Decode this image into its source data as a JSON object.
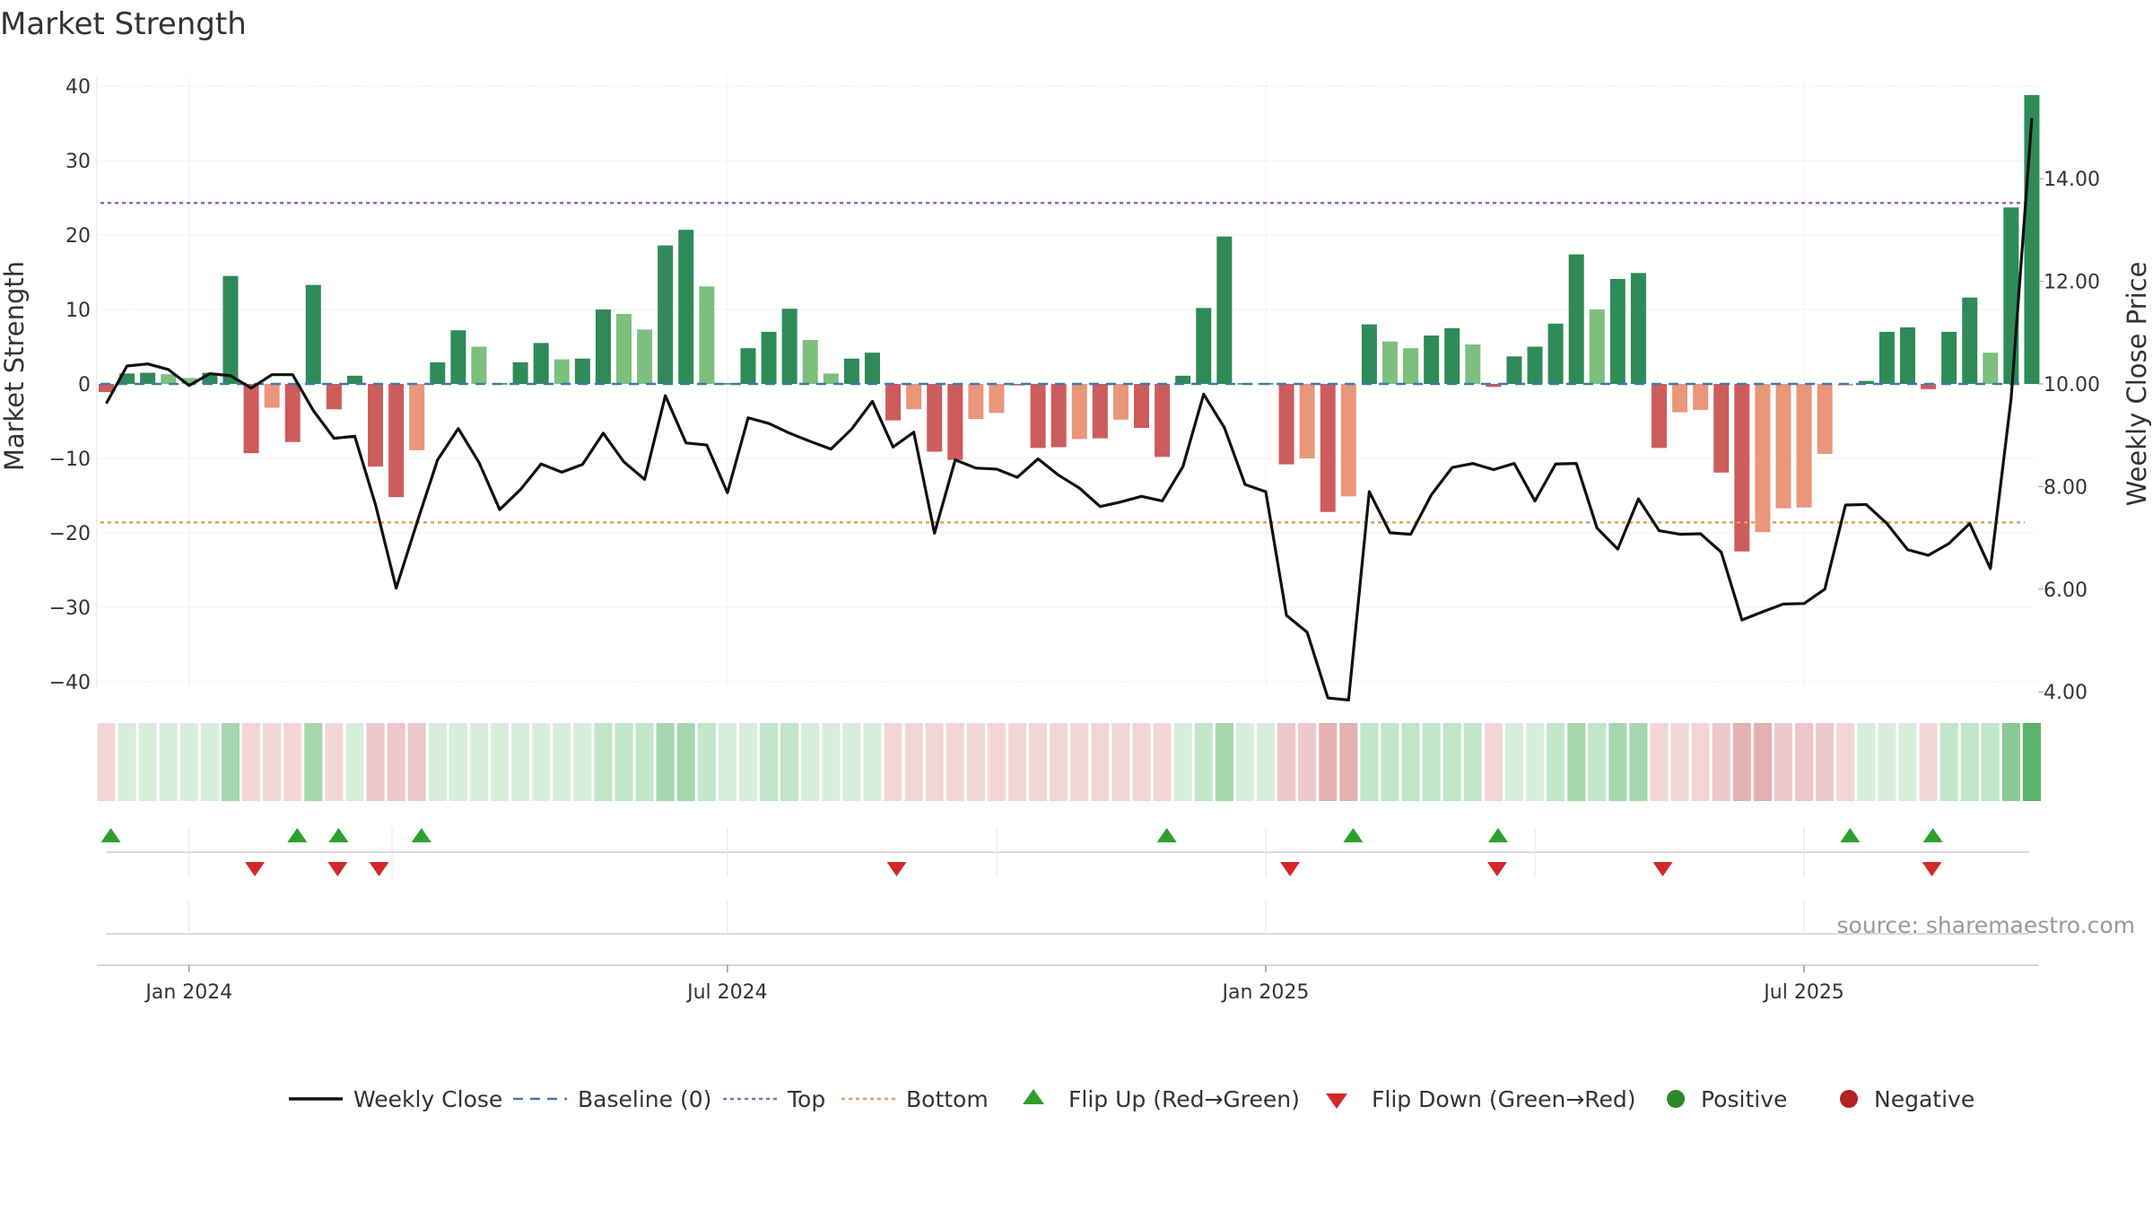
{
  "chart_data": {
    "type": "bar",
    "title": "Market Strength",
    "ylabel_left": "Market Strength",
    "ylabel_right": "Weekly Close Price",
    "source": "source: sharemaestro.com",
    "ylim_left": [
      -45,
      40
    ],
    "yticks_left": [
      {
        "value": 40,
        "label": "40"
      },
      {
        "value": 30,
        "label": "30"
      },
      {
        "value": 20,
        "label": "20"
      },
      {
        "value": 10,
        "label": "10"
      },
      {
        "value": 0,
        "label": "0"
      },
      {
        "value": -10,
        "label": "−10"
      },
      {
        "value": -20,
        "label": "−20"
      },
      {
        "value": -30,
        "label": "−30"
      },
      {
        "value": -40,
        "label": "−40"
      }
    ],
    "ylim_right": [
      3.66,
      15.5
    ],
    "yticks_right": [
      {
        "value": 14,
        "label": "14.00"
      },
      {
        "value": 12,
        "label": "12.00"
      },
      {
        "value": 10,
        "label": "10.00"
      },
      {
        "value": 8,
        "label": "8.00"
      },
      {
        "value": 6,
        "label": "6.00"
      },
      {
        "value": 4,
        "label": "4.00"
      }
    ],
    "top_line": 24.3,
    "bottom_line": -18.6,
    "xticks": [
      {
        "index": 4,
        "label": "Jan 2024"
      },
      {
        "index": 30,
        "label": "Jul 2024"
      },
      {
        "index": 56,
        "label": "Jan 2025"
      },
      {
        "index": 82,
        "label": "Jul 2025"
      }
    ],
    "strength": [
      -1.1,
      1.4,
      1.5,
      1.3,
      0.8,
      1.5,
      14.5,
      -9.3,
      -3.2,
      -7.8,
      13.3,
      -3.4,
      1.1,
      -11.1,
      -15.2,
      -8.9,
      2.9,
      7.2,
      5.0,
      0.1,
      2.9,
      5.5,
      3.3,
      3.4,
      10.0,
      9.4,
      7.3,
      18.6,
      20.7,
      13.1,
      0.1,
      4.8,
      7.0,
      10.1,
      5.9,
      1.4,
      3.4,
      4.2,
      -4.9,
      -3.4,
      -9.1,
      -10.2,
      -4.7,
      -3.9,
      -0.2,
      -8.6,
      -8.5,
      -7.4,
      -7.3,
      -4.8,
      -5.9,
      -9.8,
      1.1,
      10.2,
      19.8,
      0.1,
      0.1,
      -10.8,
      -10.0,
      -17.2,
      -15.1,
      8.0,
      5.7,
      4.8,
      6.5,
      7.5,
      5.3,
      -0.4,
      3.7,
      5.0,
      8.1,
      17.4,
      10.0,
      14.1,
      14.9,
      -8.6,
      -3.8,
      -3.5,
      -11.9,
      -22.5,
      -19.9,
      -16.7,
      -16.6,
      -9.4,
      -0.2,
      0.4,
      7.0,
      7.6,
      -0.7,
      7.0,
      11.6,
      4.2,
      23.7,
      38.8
    ],
    "strength_shade": [
      1,
      1,
      1,
      0,
      0,
      1,
      1,
      1,
      0,
      1,
      1,
      1,
      1,
      1,
      1,
      0,
      1,
      1,
      0,
      1,
      1,
      1,
      0,
      1,
      1,
      0,
      0,
      1,
      1,
      0,
      1,
      1,
      1,
      1,
      0,
      0,
      1,
      1,
      1,
      0,
      1,
      1,
      0,
      0,
      1,
      1,
      1,
      0,
      1,
      0,
      1,
      1,
      1,
      1,
      1,
      1,
      1,
      1,
      0,
      1,
      0,
      1,
      0,
      0,
      1,
      1,
      0,
      1,
      1,
      1,
      1,
      1,
      0,
      1,
      1,
      1,
      0,
      0,
      1,
      1,
      0,
      0,
      0,
      0,
      0,
      1,
      1,
      1,
      1,
      1,
      1,
      0,
      1,
      1
    ],
    "weekly_close": [
      9.62,
      10.35,
      10.39,
      10.28,
      9.97,
      10.2,
      10.16,
      9.92,
      10.18,
      10.18,
      9.48,
      8.94,
      8.98,
      7.65,
      6.02,
      7.29,
      8.52,
      9.13,
      8.47,
      7.55,
      7.94,
      8.44,
      8.28,
      8.43,
      9.04,
      8.48,
      8.14,
      9.77,
      8.85,
      8.81,
      7.88,
      9.34,
      9.23,
      9.04,
      8.88,
      8.73,
      9.12,
      9.66,
      8.77,
      9.06,
      7.09,
      8.52,
      8.36,
      8.34,
      8.18,
      8.54,
      8.22,
      7.97,
      7.61,
      7.7,
      7.81,
      7.72,
      8.39,
      9.8,
      9.15,
      8.04,
      7.9,
      5.49,
      5.16,
      3.88,
      3.84,
      7.9,
      7.1,
      7.07,
      7.84,
      8.37,
      8.45,
      8.33,
      8.45,
      7.72,
      8.44,
      8.45,
      7.19,
      6.78,
      7.76,
      7.14,
      7.07,
      7.08,
      6.72,
      5.4,
      5.56,
      5.71,
      5.72,
      6.0,
      7.64,
      7.65,
      7.28,
      6.77,
      6.66,
      6.89,
      7.28,
      6.4,
      9.72,
      15.18
    ],
    "regime_intensity": [
      -1,
      1,
      1,
      1,
      1,
      1,
      3,
      -1,
      -1,
      -1,
      3,
      -1,
      1,
      -2,
      -2,
      -2,
      1,
      1,
      1,
      1,
      1,
      1,
      1,
      1,
      2,
      2,
      2,
      3,
      3,
      2,
      1,
      1,
      2,
      2,
      1,
      1,
      1,
      1,
      -1,
      -1,
      -1,
      -1,
      -1,
      -1,
      -1,
      -1,
      -1,
      -1,
      -1,
      -1,
      -1,
      -1,
      1,
      2,
      3,
      1,
      1,
      -2,
      -2,
      -3,
      -3,
      2,
      2,
      2,
      2,
      2,
      2,
      -1,
      1,
      1,
      2,
      3,
      2,
      3,
      3,
      -1,
      -1,
      -1,
      -2,
      -3,
      -3,
      -2,
      -2,
      -2,
      -1,
      1,
      1,
      1,
      -1,
      2,
      2,
      2,
      4,
      5
    ],
    "flip_up_indices": [
      1,
      10,
      12,
      16,
      52,
      61,
      68,
      85,
      89
    ],
    "flip_down_indices": [
      7,
      11,
      13,
      38,
      57,
      67,
      75,
      88
    ],
    "legend": [
      {
        "kind": "line",
        "label": "Weekly Close",
        "color": "#111111"
      },
      {
        "kind": "dash",
        "label": "Baseline (0)",
        "color": "#3a7cb5"
      },
      {
        "kind": "dot-purple",
        "label": "Top",
        "color": "#9467bd"
      },
      {
        "kind": "dot-orange",
        "label": "Bottom",
        "color": "#e0a060"
      },
      {
        "kind": "tri-up",
        "label": "Flip Up (Red→Green)",
        "color": "#2ca02c"
      },
      {
        "kind": "tri-down",
        "label": "Flip Down (Green→Red)",
        "color": "#d62728"
      },
      {
        "kind": "dot-green",
        "label": "Positive",
        "color": "#2a8a2a"
      },
      {
        "kind": "dot-red",
        "label": "Negative",
        "color": "#b22222"
      }
    ],
    "colors": {
      "pos_dark": "#2e8b57",
      "pos_light": "#7dbf7d",
      "neg_dark": "#cd5c5c",
      "neg_light": "#e9967a",
      "flip_up": "#2ca02c",
      "flip_down": "#d62728",
      "top": "#9467bd",
      "bottom": "#e0a060",
      "baseline": "#3a7cb5",
      "close": "#111111"
    }
  }
}
